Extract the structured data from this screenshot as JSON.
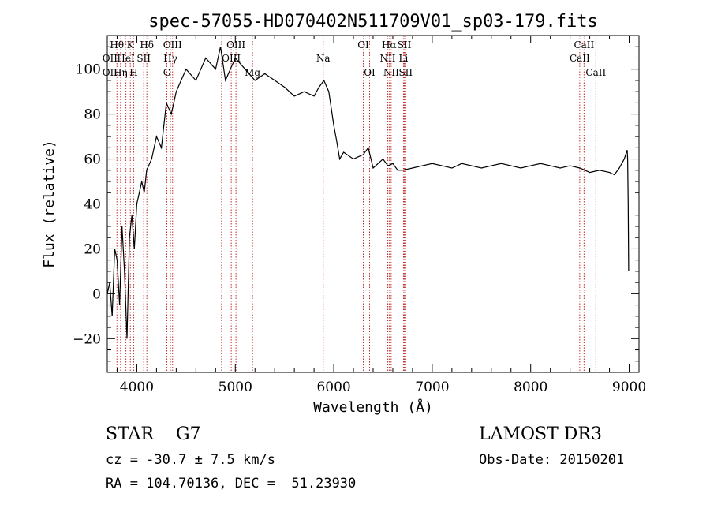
{
  "chart_data": {
    "type": "line",
    "title": "spec-57055-HD070402N511709V01_sp03-179.fits",
    "xlabel": "Wavelength (Å)",
    "ylabel": "Flux (relative)",
    "xlim": [
      3700,
      9100
    ],
    "ylim": [
      -35,
      115
    ],
    "xticks": [
      4000,
      5000,
      6000,
      7000,
      8000,
      9000
    ],
    "yticks": [
      -20,
      0,
      20,
      40,
      60,
      80,
      100
    ],
    "series": [
      {
        "color": "#000000",
        "x": [
          3700,
          3725,
          3750,
          3775,
          3800,
          3825,
          3850,
          3875,
          3900,
          3925,
          3950,
          3975,
          4000,
          4025,
          4050,
          4075,
          4100,
          4150,
          4200,
          4250,
          4300,
          4350,
          4400,
          4450,
          4500,
          4600,
          4700,
          4800,
          4850,
          4900,
          5000,
          5100,
          5200,
          5300,
          5400,
          5500,
          5600,
          5700,
          5800,
          5850,
          5900,
          5950,
          6000,
          6030,
          6060,
          6100,
          6200,
          6300,
          6350,
          6400,
          6450,
          6500,
          6550,
          6600,
          6650,
          6700,
          6800,
          6900,
          7000,
          7100,
          7200,
          7300,
          7400,
          7500,
          7600,
          7700,
          7800,
          7900,
          8000,
          8100,
          8200,
          8300,
          8400,
          8500,
          8600,
          8700,
          8800,
          8850,
          8900,
          8950,
          8980,
          8985,
          8990,
          8995
        ],
        "y": [
          0,
          5,
          -10,
          20,
          15,
          -5,
          30,
          10,
          -20,
          25,
          35,
          20,
          40,
          45,
          50,
          45,
          55,
          60,
          70,
          65,
          85,
          80,
          90,
          95,
          100,
          95,
          105,
          100,
          110,
          95,
          105,
          100,
          95,
          98,
          95,
          92,
          88,
          90,
          88,
          92,
          95,
          90,
          75,
          68,
          60,
          63,
          60,
          62,
          65,
          56,
          58,
          60,
          57,
          58,
          55,
          55,
          56,
          57,
          58,
          57,
          56,
          58,
          57,
          56,
          57,
          58,
          57,
          56,
          57,
          58,
          57,
          56,
          57,
          56,
          54,
          55,
          54,
          53,
          56,
          60,
          64,
          60,
          40,
          10
        ]
      }
    ],
    "annotations": [
      {
        "label": "Hθ",
        "x": 3798,
        "row": 0
      },
      {
        "label": "OII",
        "x": 3727,
        "row": 1
      },
      {
        "label": "OII",
        "x": 3727,
        "row": 2
      },
      {
        "label": "K",
        "x": 3934,
        "row": 0
      },
      {
        "label": "HeI",
        "x": 3889,
        "row": 1
      },
      {
        "label": "Hη",
        "x": 3835,
        "row": 2
      },
      {
        "label": "H",
        "x": 3968,
        "row": 2
      },
      {
        "label": "Hδ",
        "x": 4102,
        "row": 0
      },
      {
        "label": "SII",
        "x": 4070,
        "row": 1
      },
      {
        "label": "OIII",
        "x": 4363,
        "row": 0
      },
      {
        "label": "Hγ",
        "x": 4341,
        "row": 1
      },
      {
        "label": "G",
        "x": 4305,
        "row": 2
      },
      {
        "label": "OIII",
        "x": 5007,
        "row": 0
      },
      {
        "label": "OIII",
        "x": 4959,
        "row": 1
      },
      {
        "label": "Mg",
        "x": 5175,
        "row": 2
      },
      {
        "label": "Na",
        "x": 5893,
        "row": 1
      },
      {
        "label": "OI",
        "x": 6300,
        "row": 0
      },
      {
        "label": "OI",
        "x": 6364,
        "row": 2
      },
      {
        "label": "Hα",
        "x": 6563,
        "row": 0
      },
      {
        "label": "SII",
        "x": 6717,
        "row": 0
      },
      {
        "label": "NII",
        "x": 6548,
        "row": 1
      },
      {
        "label": "Li",
        "x": 6708,
        "row": 1
      },
      {
        "label": "NII",
        "x": 6583,
        "row": 2
      },
      {
        "label": "SII",
        "x": 6731,
        "row": 2
      },
      {
        "label": "CaII",
        "x": 8498,
        "row": 1
      },
      {
        "label": "CaII",
        "x": 8542,
        "row": 0
      },
      {
        "label": "CaII",
        "x": 8662,
        "row": 2
      }
    ],
    "line_markers": [
      3727,
      3798,
      3835,
      3889,
      3934,
      3968,
      4070,
      4102,
      4305,
      4341,
      4363,
      4861,
      4959,
      5007,
      5175,
      5893,
      6300,
      6364,
      6548,
      6563,
      6583,
      6708,
      6717,
      6731,
      8498,
      8542,
      8662
    ]
  },
  "info": {
    "object": "STAR    G7",
    "survey": "LAMOST DR3",
    "cz": "cz = -30.7 ± 7.5 km/s",
    "obs_date": "Obs-Date: 20150201",
    "coords": "RA = 104.70136, DEC =  51.23930"
  }
}
